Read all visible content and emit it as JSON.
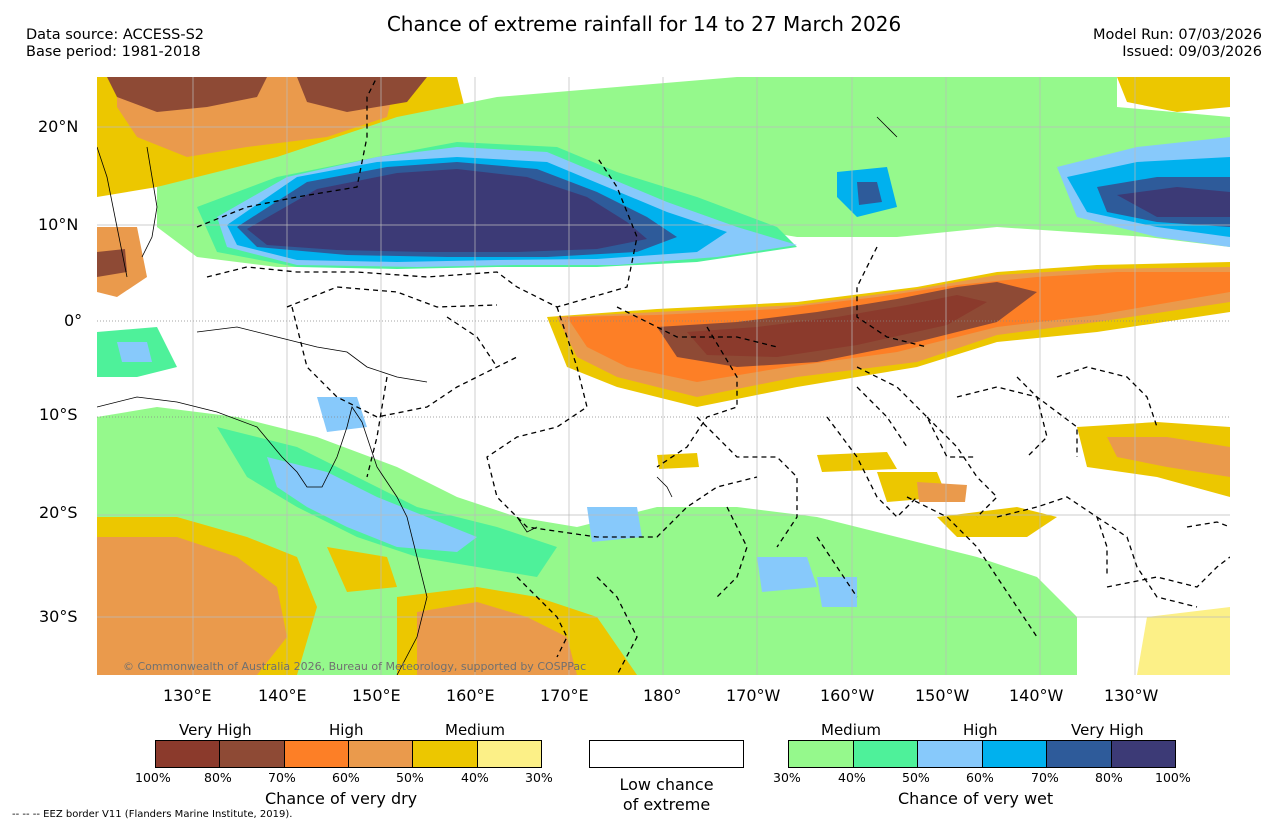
{
  "header": {
    "title": "Chance of extreme rainfall for 14 to 27 March 2026",
    "data_source": "Data source: ACCESS-S2",
    "base_period": "Base period: 1981-2018",
    "model_run": "Model Run: 07/03/2026",
    "issued": "Issued: 09/03/2026"
  },
  "axes": {
    "lat_labels": [
      "20°N",
      "10°N",
      "0°",
      "10°S",
      "20°S",
      "30°S"
    ],
    "lon_labels": [
      "130°E",
      "140°E",
      "150°E",
      "160°E",
      "170°E",
      "180°",
      "170°W",
      "160°W",
      "150°W",
      "140°W",
      "130°W"
    ]
  },
  "copyright": "© Commonwealth of Australia 2026, Bureau of Meteorology, supported by COSPPac",
  "legend": {
    "dry": {
      "categories": [
        "Very High",
        "High",
        "Medium"
      ],
      "ticks": [
        "100%",
        "80%",
        "70%",
        "60%",
        "50%",
        "40%",
        "30%"
      ],
      "colors": [
        "#8b3a2c",
        "#8e4a35",
        "#fd7f26",
        "#ea9a4c",
        "#ecc700",
        "#fcf087"
      ],
      "title": "Chance of very dry"
    },
    "low": {
      "label_line1": "Low chance",
      "label_line2": "of extreme"
    },
    "wet": {
      "categories": [
        "Medium",
        "High",
        "Very High"
      ],
      "ticks": [
        "30%",
        "40%",
        "50%",
        "60%",
        "70%",
        "80%",
        "100%"
      ],
      "colors": [
        "#95f98c",
        "#4ef19a",
        "#87c9fb",
        "#00b1ee",
        "#2e5b9a",
        "#3c3a76"
      ],
      "title": "Chance of very wet"
    }
  },
  "footnote": "-- -- -- EEZ border V11 (Flanders Marine Institute, 2019)."
}
